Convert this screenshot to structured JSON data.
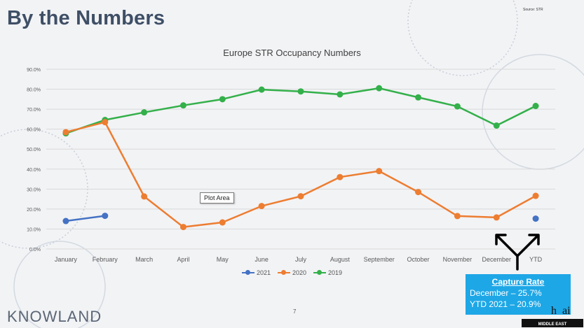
{
  "slide": {
    "title": "By the Numbers",
    "source_note": "Source: STR",
    "page_number": "7",
    "brand": "KNOWLAND",
    "tooltip": "Plot Area",
    "partner_logo_text": "...ai",
    "partner_logo_subtext": "MIDDLE EAST"
  },
  "callout": {
    "title": "Capture Rate",
    "line1": "December – 25.7%",
    "line2": "YTD 2021 – 20.9%"
  },
  "colors": {
    "2021": "#4472c4",
    "2020": "#ed7d31",
    "2019": "#33b04a",
    "arrow": "#000000",
    "callout_bg": "#1ea7e6"
  },
  "chart_data": {
    "type": "line",
    "title": "Europe STR Occupancy Numbers",
    "categories": [
      "January",
      "February",
      "March",
      "April",
      "May",
      "June",
      "July",
      "August",
      "September",
      "October",
      "November",
      "December",
      "YTD"
    ],
    "y_ticks": [
      "0.0%",
      "10.0%",
      "20.0%",
      "30.0%",
      "40.0%",
      "50.0%",
      "60.0%",
      "70.0%",
      "80.0%",
      "90.0%"
    ],
    "ylim": [
      0,
      90
    ],
    "grid": true,
    "legend_position": "bottom",
    "series": [
      {
        "name": "2021",
        "values": [
          14.0,
          16.6,
          null,
          null,
          null,
          null,
          null,
          null,
          null,
          null,
          null,
          null,
          15.2
        ]
      },
      {
        "name": "2020",
        "values": [
          58.5,
          63.5,
          26.3,
          11.0,
          13.3,
          21.5,
          26.4,
          36.0,
          39.0,
          28.5,
          16.5,
          15.8,
          26.6
        ]
      },
      {
        "name": "2019",
        "values": [
          57.9,
          64.6,
          68.4,
          71.9,
          75.0,
          79.8,
          78.9,
          77.4,
          80.5,
          75.9,
          71.4,
          61.8,
          71.6
        ]
      }
    ]
  }
}
